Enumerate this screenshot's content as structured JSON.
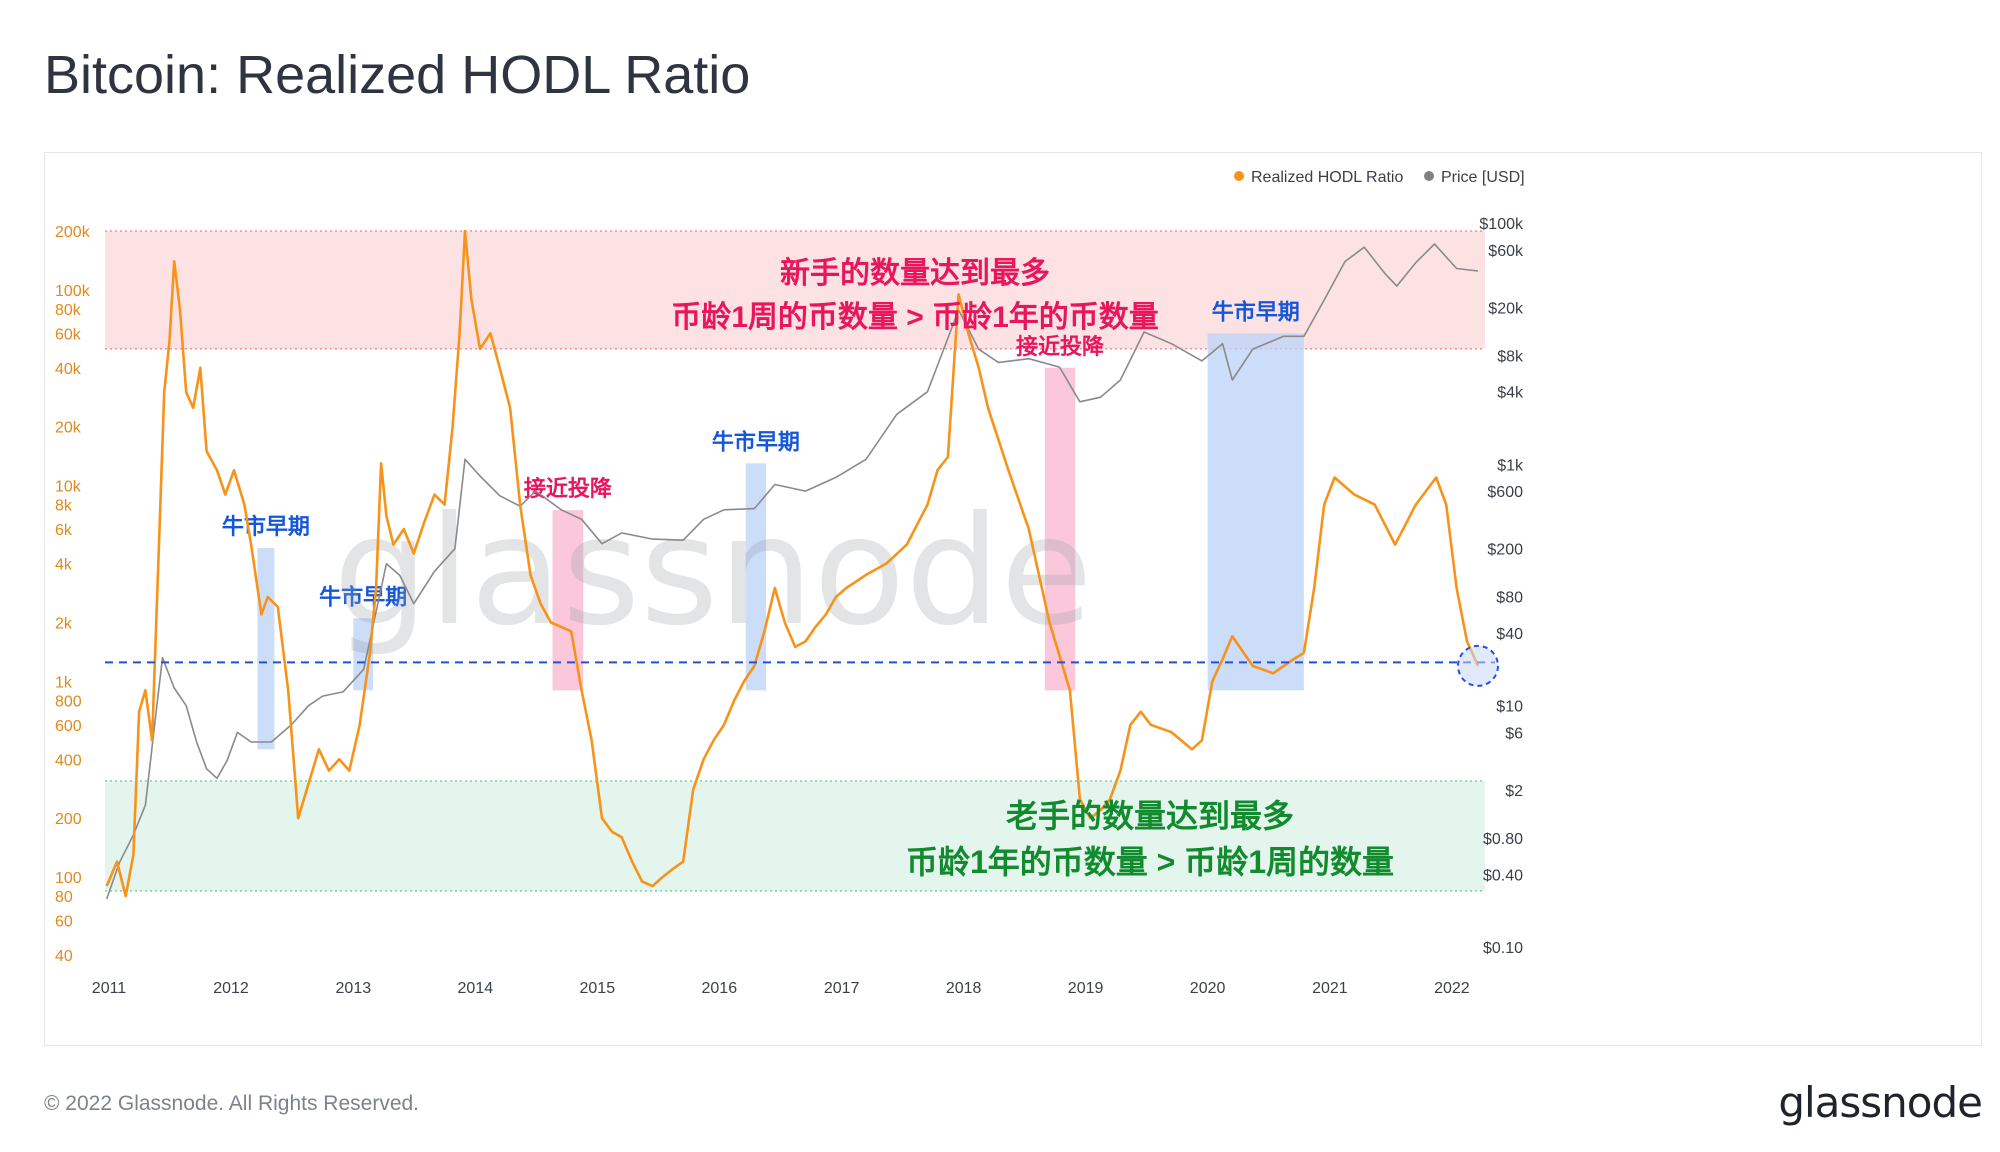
{
  "title": "Bitcoin: Realized HODL Ratio",
  "footer": {
    "copyright": "© 2022 Glassnode. All Rights Reserved.",
    "logo": "glassnode"
  },
  "watermark": "glassnode",
  "legend": [
    {
      "label": "Realized HODL Ratio",
      "color": "#f7931a"
    },
    {
      "label": "Price [USD]",
      "color": "#808080"
    }
  ],
  "colors": {
    "hodl": "#f7931a",
    "price": "#8a8a8a",
    "top_band": "#fde2e4",
    "bottom_band": "#e3f5ec",
    "pink_region": "#f9b9cf",
    "blue_region": "#bcd3f7",
    "dash_line": "#2450e0"
  },
  "annotations": {
    "top_band_line1": "新手的数量达到最多",
    "top_band_line2": "币龄1周的币数量 > 币龄1年的币数量",
    "bottom_band_line1": "老手的数量达到最多",
    "bottom_band_line2": "币龄1年的币数量 > 币龄1周的数量"
  },
  "chart_data": {
    "type": "line",
    "x_axis": {
      "type": "date",
      "range": [
        "2010-12-20",
        "2022-04-10"
      ],
      "ticks": [
        "2011",
        "2012",
        "2013",
        "2014",
        "2015",
        "2016",
        "2017",
        "2018",
        "2019",
        "2020",
        "2021",
        "2022"
      ]
    },
    "y_left": {
      "scale": "log",
      "range": [
        40,
        200000
      ],
      "ticks": [
        "40",
        "60",
        "80",
        "100",
        "200",
        "400",
        "600",
        "800",
        "1k",
        "2k",
        "4k",
        "6k",
        "8k",
        "10k",
        "20k",
        "40k",
        "60k",
        "80k",
        "100k",
        "200k"
      ]
    },
    "y_right": {
      "scale": "log",
      "range": [
        0.1,
        100000
      ],
      "ticks": [
        "$0.10",
        "$0.40",
        "$0.80",
        "$2",
        "$6",
        "$10",
        "$40",
        "$80",
        "$200",
        "$600",
        "$1k",
        "$4k",
        "$8k",
        "$20k",
        "$60k",
        "$100k"
      ]
    },
    "bands": [
      {
        "name": "top",
        "from": 50000,
        "to": 200000,
        "label_line1": "新手的数量达到最多",
        "label_line2": "币龄1周的币数量 > 币龄1年的币数量"
      },
      {
        "name": "bottom",
        "from": 85,
        "to": 310,
        "label_line1": "老手的数量达到最多",
        "label_line2": "币龄1年的币数量 > 币龄1周的数量"
      }
    ],
    "reference_line": 1250,
    "regions": [
      {
        "kind": "blue",
        "label": "牛市早期",
        "from": "2012-03-20",
        "to": "2012-05-10",
        "y_low": 450,
        "y_high": 4800
      },
      {
        "kind": "blue",
        "label": "牛市早期",
        "from": "2013-01-01",
        "to": "2013-03-01",
        "y_low": 900,
        "y_high": 2100
      },
      {
        "kind": "pink",
        "label": "接近投降",
        "from": "2014-08-20",
        "to": "2014-11-20",
        "y_low": 900,
        "y_high": 7500
      },
      {
        "kind": "blue",
        "label": "牛市早期",
        "from": "2016-03-20",
        "to": "2016-05-20",
        "y_low": 900,
        "y_high": 13000
      },
      {
        "kind": "pink",
        "label": "接近投降",
        "from": "2018-09-01",
        "to": "2018-12-01",
        "y_low": 900,
        "y_high": 40000
      },
      {
        "kind": "blue",
        "label": "牛市早期",
        "from": "2020-01-01",
        "to": "2020-10-15",
        "y_low": 900,
        "y_high": 60000
      }
    ],
    "series": [
      {
        "name": "Realized HODL Ratio",
        "axis": "left",
        "points": [
          [
            "2010-12-25",
            90
          ],
          [
            "2011-01-25",
            120
          ],
          [
            "2011-02-20",
            80
          ],
          [
            "2011-03-15",
            130
          ],
          [
            "2011-04-01",
            700
          ],
          [
            "2011-04-20",
            900
          ],
          [
            "2011-05-10",
            500
          ],
          [
            "2011-06-01",
            6000
          ],
          [
            "2011-06-15",
            30000
          ],
          [
            "2011-07-01",
            55000
          ],
          [
            "2011-07-15",
            140000
          ],
          [
            "2011-08-01",
            80000
          ],
          [
            "2011-08-20",
            30000
          ],
          [
            "2011-09-10",
            25000
          ],
          [
            "2011-10-01",
            40000
          ],
          [
            "2011-10-20",
            15000
          ],
          [
            "2011-11-20",
            12000
          ],
          [
            "2011-12-15",
            9000
          ],
          [
            "2012-01-10",
            12000
          ],
          [
            "2012-02-10",
            8000
          ],
          [
            "2012-03-01",
            5000
          ],
          [
            "2012-04-01",
            2200
          ],
          [
            "2012-04-20",
            2700
          ],
          [
            "2012-05-20",
            2400
          ],
          [
            "2012-06-20",
            900
          ],
          [
            "2012-07-20",
            200
          ],
          [
            "2012-08-20",
            300
          ],
          [
            "2012-09-20",
            450
          ],
          [
            "2012-10-20",
            350
          ],
          [
            "2012-11-20",
            400
          ],
          [
            "2012-12-20",
            350
          ],
          [
            "2013-01-20",
            600
          ],
          [
            "2013-02-20",
            1400
          ],
          [
            "2013-03-10",
            3000
          ],
          [
            "2013-03-25",
            13000
          ],
          [
            "2013-04-10",
            7000
          ],
          [
            "2013-05-01",
            5000
          ],
          [
            "2013-06-01",
            6000
          ],
          [
            "2013-07-01",
            4500
          ],
          [
            "2013-08-01",
            6500
          ],
          [
            "2013-09-01",
            9000
          ],
          [
            "2013-10-01",
            8000
          ],
          [
            "2013-10-25",
            20000
          ],
          [
            "2013-11-15",
            60000
          ],
          [
            "2013-12-01",
            200000
          ],
          [
            "2013-12-20",
            90000
          ],
          [
            "2014-01-15",
            50000
          ],
          [
            "2014-02-15",
            60000
          ],
          [
            "2014-03-15",
            40000
          ],
          [
            "2014-04-15",
            25000
          ],
          [
            "2014-05-15",
            8000
          ],
          [
            "2014-06-15",
            3500
          ],
          [
            "2014-07-15",
            2500
          ],
          [
            "2014-08-15",
            2000
          ],
          [
            "2014-09-15",
            1900
          ],
          [
            "2014-10-15",
            1800
          ],
          [
            "2014-11-15",
            900
          ],
          [
            "2014-12-15",
            500
          ],
          [
            "2015-01-15",
            200
          ],
          [
            "2015-02-15",
            170
          ],
          [
            "2015-03-15",
            160
          ],
          [
            "2015-04-15",
            120
          ],
          [
            "2015-05-15",
            95
          ],
          [
            "2015-06-15",
            90
          ],
          [
            "2015-07-15",
            100
          ],
          [
            "2015-08-15",
            110
          ],
          [
            "2015-09-15",
            120
          ],
          [
            "2015-10-15",
            280
          ],
          [
            "2015-11-15",
            400
          ],
          [
            "2015-12-15",
            500
          ],
          [
            "2016-01-15",
            600
          ],
          [
            "2016-02-15",
            800
          ],
          [
            "2016-03-15",
            1000
          ],
          [
            "2016-04-15",
            1200
          ],
          [
            "2016-05-15",
            1800
          ],
          [
            "2016-06-15",
            3000
          ],
          [
            "2016-07-15",
            2000
          ],
          [
            "2016-08-15",
            1500
          ],
          [
            "2016-09-15",
            1600
          ],
          [
            "2016-10-15",
            1900
          ],
          [
            "2016-11-15",
            2200
          ],
          [
            "2016-12-15",
            2700
          ],
          [
            "2017-01-15",
            3000
          ],
          [
            "2017-03-15",
            3500
          ],
          [
            "2017-05-15",
            4000
          ],
          [
            "2017-07-15",
            5000
          ],
          [
            "2017-09-15",
            8000
          ],
          [
            "2017-10-15",
            12000
          ],
          [
            "2017-11-15",
            14000
          ],
          [
            "2017-12-17",
            95000
          ],
          [
            "2018-01-15",
            60000
          ],
          [
            "2018-02-15",
            40000
          ],
          [
            "2018-03-15",
            25000
          ],
          [
            "2018-05-15",
            12000
          ],
          [
            "2018-07-15",
            6000
          ],
          [
            "2018-09-15",
            2000
          ],
          [
            "2018-11-15",
            900
          ],
          [
            "2018-12-15",
            250
          ],
          [
            "2019-01-15",
            200
          ],
          [
            "2019-02-15",
            220
          ],
          [
            "2019-03-15",
            250
          ],
          [
            "2019-04-15",
            350
          ],
          [
            "2019-05-15",
            600
          ],
          [
            "2019-06-15",
            700
          ],
          [
            "2019-07-15",
            600
          ],
          [
            "2019-09-15",
            550
          ],
          [
            "2019-11-15",
            450
          ],
          [
            "2019-12-15",
            500
          ],
          [
            "2020-01-15",
            1000
          ],
          [
            "2020-02-15",
            1300
          ],
          [
            "2020-03-15",
            1700
          ],
          [
            "2020-05-15",
            1200
          ],
          [
            "2020-07-15",
            1100
          ],
          [
            "2020-09-15",
            1300
          ],
          [
            "2020-10-15",
            1400
          ],
          [
            "2020-11-15",
            3000
          ],
          [
            "2020-12-15",
            8000
          ],
          [
            "2021-01-15",
            11000
          ],
          [
            "2021-03-15",
            9000
          ],
          [
            "2021-05-15",
            8000
          ],
          [
            "2021-07-15",
            5000
          ],
          [
            "2021-09-15",
            8000
          ],
          [
            "2021-11-15",
            11000
          ],
          [
            "2021-12-15",
            8000
          ],
          [
            "2022-01-15",
            3000
          ],
          [
            "2022-02-15",
            1600
          ],
          [
            "2022-03-20",
            1200
          ]
        ]
      },
      {
        "name": "Price [USD]",
        "axis": "right",
        "points": [
          [
            "2010-12-25",
            0.25
          ],
          [
            "2011-02-01",
            0.5
          ],
          [
            "2011-03-15",
            0.85
          ],
          [
            "2011-04-20",
            1.5
          ],
          [
            "2011-05-20",
            8
          ],
          [
            "2011-06-10",
            25
          ],
          [
            "2011-07-15",
            14
          ],
          [
            "2011-08-20",
            10
          ],
          [
            "2011-09-20",
            5
          ],
          [
            "2011-10-20",
            3
          ],
          [
            "2011-11-20",
            2.5
          ],
          [
            "2011-12-20",
            3.5
          ],
          [
            "2012-01-20",
            6
          ],
          [
            "2012-03-01",
            5
          ],
          [
            "2012-05-01",
            5
          ],
          [
            "2012-07-01",
            7
          ],
          [
            "2012-08-20",
            10
          ],
          [
            "2012-10-01",
            12
          ],
          [
            "2012-12-01",
            13
          ],
          [
            "2013-02-01",
            20
          ],
          [
            "2013-04-10",
            150
          ],
          [
            "2013-05-20",
            120
          ],
          [
            "2013-07-01",
            70
          ],
          [
            "2013-09-01",
            130
          ],
          [
            "2013-11-01",
            200
          ],
          [
            "2013-12-01",
            1100
          ],
          [
            "2014-01-15",
            800
          ],
          [
            "2014-03-15",
            550
          ],
          [
            "2014-05-15",
            450
          ],
          [
            "2014-07-01",
            600
          ],
          [
            "2014-09-15",
            420
          ],
          [
            "2014-11-15",
            350
          ],
          [
            "2015-01-15",
            220
          ],
          [
            "2015-03-15",
            270
          ],
          [
            "2015-06-15",
            240
          ],
          [
            "2015-09-15",
            235
          ],
          [
            "2015-11-15",
            350
          ],
          [
            "2016-01-15",
            420
          ],
          [
            "2016-04-15",
            430
          ],
          [
            "2016-06-15",
            680
          ],
          [
            "2016-09-15",
            600
          ],
          [
            "2016-12-15",
            780
          ],
          [
            "2017-03-15",
            1100
          ],
          [
            "2017-06-15",
            2600
          ],
          [
            "2017-09-15",
            4000
          ],
          [
            "2017-12-17",
            19000
          ],
          [
            "2018-02-15",
            9000
          ],
          [
            "2018-04-15",
            7000
          ],
          [
            "2018-07-15",
            7500
          ],
          [
            "2018-10-15",
            6400
          ],
          [
            "2018-12-15",
            3300
          ],
          [
            "2019-02-15",
            3600
          ],
          [
            "2019-04-15",
            5000
          ],
          [
            "2019-06-25",
            12500
          ],
          [
            "2019-09-15",
            10000
          ],
          [
            "2019-12-15",
            7200
          ],
          [
            "2020-02-15",
            10000
          ],
          [
            "2020-03-15",
            5000
          ],
          [
            "2020-05-15",
            9000
          ],
          [
            "2020-08-15",
            11500
          ],
          [
            "2020-10-15",
            11500
          ],
          [
            "2020-12-15",
            23000
          ],
          [
            "2021-02-15",
            48000
          ],
          [
            "2021-04-14",
            63000
          ],
          [
            "2021-06-15",
            38000
          ],
          [
            "2021-07-20",
            30000
          ],
          [
            "2021-09-15",
            47000
          ],
          [
            "2021-11-10",
            67000
          ],
          [
            "2022-01-15",
            42000
          ],
          [
            "2022-03-20",
            40000
          ]
        ]
      }
    ]
  }
}
